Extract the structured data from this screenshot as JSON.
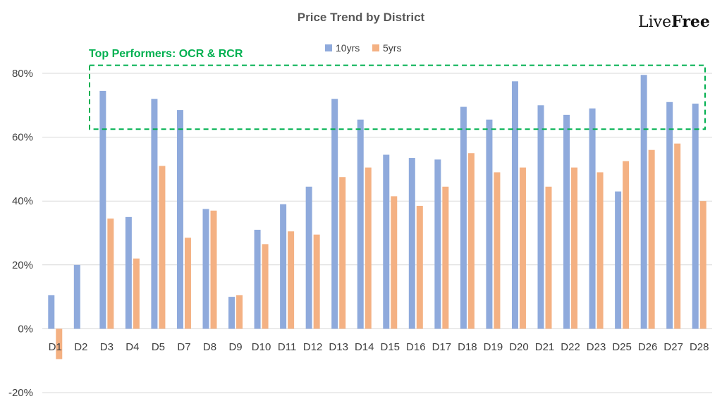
{
  "logo": {
    "part1": "Live",
    "part2": "Free"
  },
  "colors": {
    "series1": "#8faadc",
    "series2": "#f4b183",
    "annotation": "#00b050",
    "grid": "#d9d9d9"
  },
  "chart_data": {
    "type": "bar",
    "title": "Price Trend by District",
    "legend_position": "top-center",
    "grid": true,
    "ylim": [
      -0.2,
      0.8
    ],
    "yticks": [
      -0.2,
      0,
      0.2,
      0.4,
      0.6,
      0.8
    ],
    "ytick_labels": [
      "-20%",
      "0%",
      "20%",
      "40%",
      "60%",
      "80%"
    ],
    "categories": [
      "D1",
      "D2",
      "D3",
      "D4",
      "D5",
      "D7",
      "D8",
      "D9",
      "D10",
      "D11",
      "D12",
      "D13",
      "D14",
      "D15",
      "D16",
      "D17",
      "D18",
      "D19",
      "D20",
      "D21",
      "D22",
      "D23",
      "D25",
      "D26",
      "D27",
      "D28"
    ],
    "series": [
      {
        "name": "10yrs",
        "values": [
          0.105,
          0.2,
          0.745,
          0.35,
          0.72,
          0.685,
          0.375,
          0.1,
          0.31,
          0.39,
          0.445,
          0.72,
          0.655,
          0.545,
          0.535,
          0.53,
          0.695,
          0.655,
          0.775,
          0.7,
          0.67,
          0.69,
          0.43,
          0.795,
          0.71,
          0.705
        ]
      },
      {
        "name": "5yrs",
        "values": [
          -0.095,
          null,
          0.345,
          0.22,
          0.51,
          0.285,
          0.37,
          0.105,
          0.265,
          0.305,
          0.295,
          0.475,
          0.505,
          0.415,
          0.385,
          0.445,
          0.55,
          0.49,
          0.505,
          0.445,
          0.505,
          0.49,
          0.525,
          0.56,
          0.58,
          0.4
        ]
      }
    ],
    "annotations": [
      {
        "text": "Top Performers: OCR & RCR",
        "y_range": [
          0.625,
          0.825
        ]
      }
    ]
  }
}
